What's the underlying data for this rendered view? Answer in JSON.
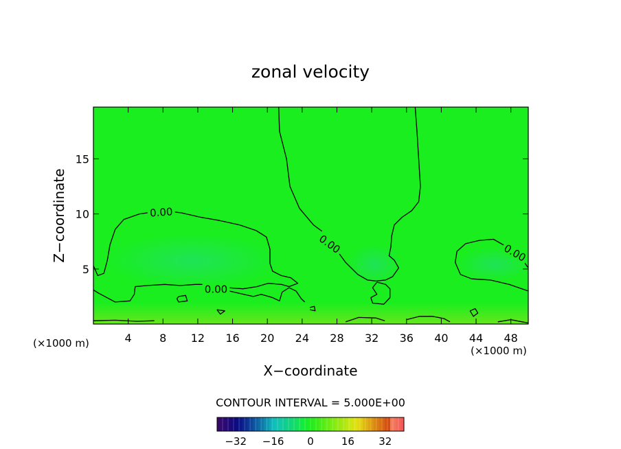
{
  "chart_data": {
    "type": "heatmap",
    "title": "zonal velocity",
    "xlabel": "X−coordinate",
    "ylabel": "Z−coordinate",
    "x_unit_left": "(×1000 m)",
    "x_unit_right": "(×1000 m)",
    "xlim": [
      0,
      50
    ],
    "ylim": [
      0,
      19.7
    ],
    "x_ticks": [
      4,
      8,
      12,
      16,
      20,
      24,
      28,
      32,
      36,
      40,
      44,
      48
    ],
    "y_ticks": [
      5,
      10,
      15
    ],
    "contour_interval_text": "CONTOUR INTERVAL = 5.000E+00",
    "contour_labels": [
      {
        "text": "0.00",
        "x": 7.8,
        "y": 10.2
      },
      {
        "text": "0.00",
        "x": 14.1,
        "y": 3.2
      },
      {
        "text": "0.00",
        "x": 27.2,
        "y": 7.3
      },
      {
        "text": "0.00",
        "x": 48.5,
        "y": 6.5
      }
    ],
    "zero_contours": [
      [
        [
          21.3,
          19.7
        ],
        [
          21.4,
          17.5
        ],
        [
          22.2,
          15.0
        ],
        [
          22.6,
          12.5
        ],
        [
          23.7,
          10.5
        ],
        [
          25.3,
          9.0
        ],
        [
          26.5,
          8.3
        ],
        [
          27.7,
          7.0
        ],
        [
          29.0,
          5.6
        ],
        [
          30.4,
          4.5
        ],
        [
          31.5,
          4.0
        ],
        [
          32.5,
          3.9
        ],
        [
          33.6,
          4.0
        ],
        [
          34.4,
          4.3
        ],
        [
          35.1,
          5.1
        ],
        [
          34.6,
          5.8
        ],
        [
          34.0,
          6.2
        ],
        [
          34.2,
          7.0
        ],
        [
          34.3,
          8.0
        ],
        [
          34.6,
          9.0
        ],
        [
          35.5,
          9.7
        ],
        [
          36.6,
          10.3
        ],
        [
          37.4,
          11.1
        ],
        [
          37.6,
          12.5
        ],
        [
          37.4,
          15.0
        ],
        [
          37.2,
          17.5
        ],
        [
          37.0,
          19.7
        ]
      ],
      [
        [
          0.0,
          5.3
        ],
        [
          0.5,
          4.4
        ],
        [
          1.2,
          4.6
        ],
        [
          1.6,
          5.8
        ],
        [
          1.9,
          7.2
        ],
        [
          2.5,
          8.6
        ],
        [
          3.5,
          9.5
        ],
        [
          5.3,
          10.0
        ],
        [
          8.0,
          10.3
        ],
        [
          10.1,
          10.1
        ],
        [
          12.3,
          9.7
        ],
        [
          14.5,
          9.4
        ],
        [
          16.8,
          9.0
        ],
        [
          18.7,
          8.5
        ],
        [
          19.9,
          7.9
        ],
        [
          20.3,
          6.8
        ],
        [
          20.3,
          5.5
        ],
        [
          20.6,
          4.8
        ],
        [
          21.6,
          4.4
        ],
        [
          22.7,
          4.2
        ],
        [
          23.5,
          3.7
        ],
        [
          22.5,
          3.4
        ],
        [
          21.6,
          3.6
        ],
        [
          20.1,
          3.7
        ],
        [
          18.8,
          3.4
        ],
        [
          17.2,
          3.2
        ],
        [
          15.5,
          3.3
        ],
        [
          13.9,
          3.6
        ],
        [
          11.7,
          3.6
        ],
        [
          10.0,
          3.5
        ],
        [
          8.2,
          3.6
        ],
        [
          6.2,
          3.5
        ],
        [
          4.8,
          3.4
        ],
        [
          4.7,
          2.7
        ],
        [
          4.2,
          2.1
        ],
        [
          2.5,
          2.0
        ],
        [
          0.6,
          2.8
        ],
        [
          0.0,
          3.1
        ]
      ],
      [
        [
          50.0,
          5.1
        ],
        [
          49.2,
          6.0
        ],
        [
          48.0,
          6.8
        ],
        [
          46.0,
          7.7
        ],
        [
          44.4,
          7.6
        ],
        [
          42.8,
          7.3
        ],
        [
          41.8,
          6.6
        ],
        [
          41.6,
          5.6
        ],
        [
          42.2,
          4.5
        ],
        [
          43.5,
          4.1
        ],
        [
          45.6,
          4.0
        ],
        [
          47.8,
          3.6
        ],
        [
          50.0,
          3.0
        ]
      ],
      [
        [
          14.9,
          3.0
        ],
        [
          15.6,
          3.0
        ],
        [
          17.3,
          2.7
        ],
        [
          18.4,
          2.5
        ],
        [
          19.3,
          2.7
        ],
        [
          20.6,
          2.4
        ],
        [
          21.4,
          2.1
        ],
        [
          21.7,
          2.9
        ],
        [
          22.5,
          3.3
        ],
        [
          23.3,
          3.0
        ],
        [
          23.9,
          2.3
        ],
        [
          24.3,
          2.0
        ]
      ],
      [
        [
          32.6,
          3.8
        ],
        [
          33.6,
          3.6
        ],
        [
          34.1,
          3.2
        ],
        [
          34.1,
          2.4
        ],
        [
          33.4,
          1.8
        ],
        [
          32.1,
          1.9
        ],
        [
          31.9,
          2.4
        ],
        [
          32.6,
          2.7
        ],
        [
          32.1,
          3.3
        ],
        [
          32.6,
          3.8
        ]
      ],
      [
        [
          9.8,
          2.5
        ],
        [
          10.6,
          2.6
        ],
        [
          10.8,
          2.1
        ],
        [
          9.8,
          2.0
        ],
        [
          9.6,
          2.3
        ],
        [
          9.8,
          2.5
        ]
      ],
      [
        [
          43.3,
          1.2
        ],
        [
          43.9,
          1.4
        ],
        [
          44.2,
          1.0
        ],
        [
          43.7,
          0.7
        ],
        [
          43.3,
          1.2
        ]
      ],
      [
        [
          24.9,
          1.5
        ],
        [
          25.4,
          1.6
        ],
        [
          25.5,
          1.2
        ],
        [
          24.9,
          1.3
        ]
      ],
      [
        [
          14.2,
          1.3
        ],
        [
          15.1,
          1.2
        ],
        [
          14.6,
          0.9
        ],
        [
          14.2,
          1.3
        ]
      ],
      [
        [
          36.0,
          0.4
        ],
        [
          37.5,
          0.7
        ],
        [
          39.0,
          0.7
        ],
        [
          40.3,
          0.5
        ],
        [
          41.0,
          0.2
        ]
      ],
      [
        [
          0.0,
          0.3
        ],
        [
          2.5,
          0.35
        ],
        [
          5.0,
          0.25
        ],
        [
          7.0,
          0.3
        ]
      ],
      [
        [
          29.0,
          0.2
        ],
        [
          30.5,
          0.6
        ],
        [
          32.5,
          0.55
        ],
        [
          33.5,
          0.3
        ]
      ],
      [
        [
          46.5,
          0.2
        ],
        [
          48.0,
          0.4
        ],
        [
          49.3,
          0.2
        ],
        [
          50.0,
          0.1
        ]
      ]
    ],
    "colorbar": {
      "min": -40,
      "max": 40,
      "ticks": [
        -32,
        -16,
        0,
        16,
        32
      ],
      "tick_labels": [
        "−32",
        "−16",
        "0",
        "16",
        "32"
      ]
    },
    "colors": {
      "field": "#1aee1e",
      "field_light": "#2ff227",
      "field_bluish": "#22e858",
      "field_yellowish": "#6ee81a",
      "contour": "#000000"
    }
  }
}
